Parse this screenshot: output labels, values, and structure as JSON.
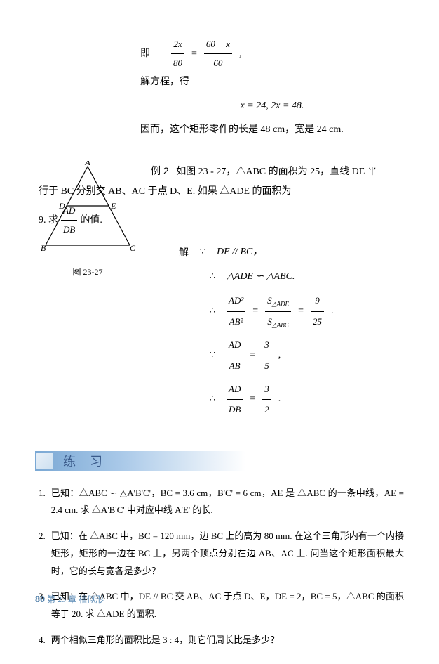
{
  "top": {
    "ji": "即",
    "eq1_lhs_num": "2x",
    "eq1_lhs_den": "80",
    "eq1_rhs_num": "60 − x",
    "eq1_rhs_den": "60",
    "solve_label": "解方程，得",
    "result": "x = 24,  2x = 48.",
    "conclusion": "因而，这个矩形零件的长是 48 cm，宽是 24 cm."
  },
  "example2": {
    "label": "例 2",
    "text_l1": "如图 23 - 27，△ABC 的面积为 25，直线 DE 平",
    "text_l2": "行于 BC 分别交 AB、AC 于点 D、E. 如果 △ADE 的面积为",
    "text_l3a": "9. 求",
    "frac_num": "AD",
    "frac_den": "DB",
    "text_l3b": "的值.",
    "figure_caption": "图 23-27",
    "vertices": {
      "A": "A",
      "B": "B",
      "C": "C",
      "D": "D",
      "E": "E"
    }
  },
  "solution": {
    "jie": "解",
    "because1": "∵",
    "line1": "DE // BC，",
    "therefore1": "∴",
    "line2": "△ADE ∽ △ABC.",
    "therefore2": "∴",
    "r3_l_num": "AD²",
    "r3_l_den": "AB²",
    "r3_m_num": "S△ADE",
    "r3_m_den": "S△ABC",
    "r3_r_num": "9",
    "r3_r_den": "25",
    "because2": "∵",
    "r4_l_num": "AD",
    "r4_l_den": "AB",
    "r4_r_num": "3",
    "r4_r_den": "5",
    "therefore3": "∴",
    "r5_l_num": "AD",
    "r5_l_den": "DB",
    "r5_r_num": "3",
    "r5_r_den": "2"
  },
  "banner": {
    "title": "练习"
  },
  "exercises": {
    "items": [
      {
        "num": "1.",
        "text": "已知：△ABC ∽ △A'B'C'，BC = 3.6 cm，B'C' = 6 cm，AE 是 △ABC 的一条中线，AE = 2.4 cm. 求 △A'B'C' 中对应中线 A'E' 的长."
      },
      {
        "num": "2.",
        "text": "已知：在 △ABC 中，BC = 120 mm，边 BC 上的高为 80 mm. 在这个三角形内有一个内接矩形，矩形的一边在 BC 上，另两个顶点分别在边 AB、AC 上. 问当这个矩形面积最大时，它的长与宽各是多少？"
      },
      {
        "num": "3.",
        "text": "已知：在 △ABC 中，DE // BC 交 AB、AC 于点 D、E，DE = 2，BC = 5，△ABC 的面积等于 20. 求 △ADE 的面积."
      },
      {
        "num": "4.",
        "text": "两个相似三角形的面积比是 3 : 4，则它们周长比是多少？"
      }
    ]
  },
  "footer": {
    "page": "80",
    "chapter": "第 23 章 相似形"
  },
  "colors": {
    "banner_start": "#7aa8d4",
    "banner_text": "#3a5a8a",
    "footer_text": "#5a8ab5"
  }
}
